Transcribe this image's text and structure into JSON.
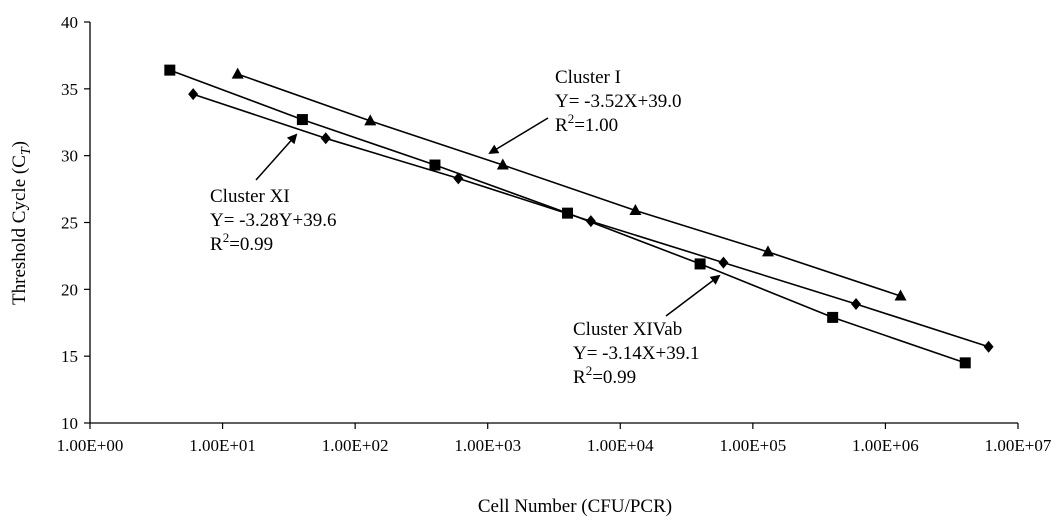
{
  "chart_data": {
    "type": "scatter",
    "xlabel": "Cell Number  (CFU/PCR)",
    "ylabel": "Threshold Cycle (C",
    "ylabel_sub": "T",
    "ylabel_end": ")",
    "x_scale": "log",
    "xlim": [
      1,
      10000000
    ],
    "ylim": [
      10,
      40
    ],
    "x_tick_labels": [
      "1.00E+00",
      "1.00E+01",
      "1.00E+02",
      "1.00E+03",
      "1.00E+04",
      "1.00E+05",
      "1.00E+06",
      "1.00E+07"
    ],
    "y_ticks": [
      10,
      15,
      20,
      25,
      30,
      35,
      40
    ],
    "y_tick_labels": [
      "10",
      "15",
      "20",
      "25",
      "30",
      "35",
      "40"
    ],
    "grid": false,
    "series": [
      {
        "name": "Cluster I",
        "marker": "triangle",
        "x": [
          13,
          130,
          1300,
          13000,
          130000,
          1300000
        ],
        "y": [
          36.1,
          32.6,
          29.3,
          25.9,
          22.8,
          19.5
        ]
      },
      {
        "name": "Cluster XI",
        "marker": "diamond",
        "x": [
          6,
          60,
          600,
          6000,
          60000,
          600000,
          6000000
        ],
        "y": [
          34.6,
          31.3,
          28.3,
          25.1,
          22.0,
          18.9,
          15.7
        ]
      },
      {
        "name": "Cluster XIVab",
        "marker": "square",
        "x": [
          4,
          40,
          400,
          4000,
          40000,
          400000,
          4000000
        ],
        "y": [
          36.4,
          32.7,
          29.3,
          25.7,
          21.9,
          17.9,
          14.5
        ]
      }
    ],
    "annotations": [
      {
        "series": "Cluster I",
        "lines": [
          "Cluster I",
          "Y= -3.52X+39.0"
        ],
        "r2_prefix": "R",
        "r2_exp": "2",
        "r2_value": "=1.00"
      },
      {
        "series": "Cluster XI",
        "lines": [
          "Cluster XI",
          "Y= -3.28Y+39.6"
        ],
        "r2_prefix": "R",
        "r2_exp": "2",
        "r2_value": "=0.99"
      },
      {
        "series": "Cluster XIVab",
        "lines": [
          "Cluster XIVab",
          "Y= -3.14X+39.1"
        ],
        "r2_prefix": "R",
        "r2_exp": "2",
        "r2_value": "=0.99"
      }
    ]
  }
}
